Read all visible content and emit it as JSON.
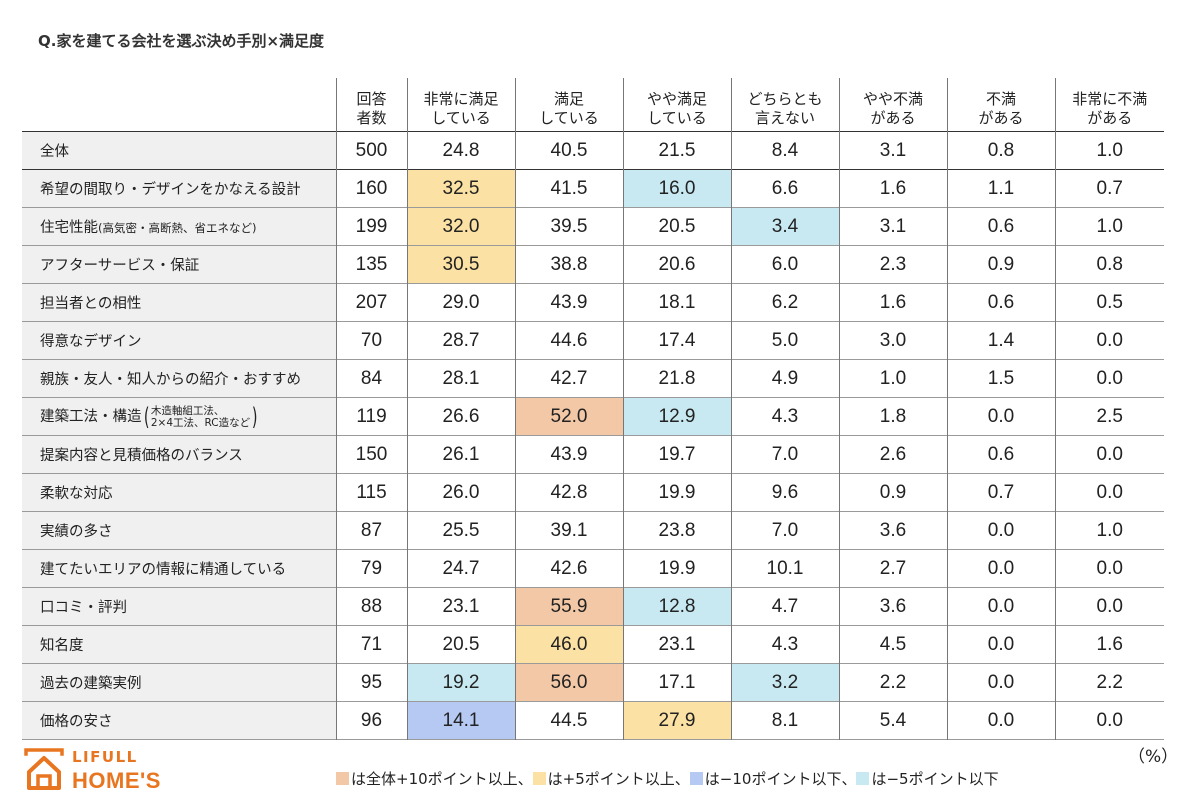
{
  "title": "Q.家を建てる会社を選ぶ決め手別×満足度",
  "colors": {
    "orange": "#f3c8a6",
    "yellow": "#fbe1a3",
    "blue": "#b5c9f3",
    "cyan": "#c9e9f2"
  },
  "chart_data": {
    "type": "table",
    "title": "Q.家を建てる会社を選ぶ決め手別×満足度",
    "unit": "（%）",
    "columns": [
      "回答\n者数",
      "非常に満足\nしている",
      "満足\nしている",
      "やや満足\nしている",
      "どちらとも\n言えない",
      "やや不満\nがある",
      "不満\nがある",
      "非常に不満\nがある"
    ],
    "rows": [
      {
        "label": "全体",
        "values": [
          "500",
          "24.8",
          "40.5",
          "21.5",
          "8.4",
          "3.1",
          "0.8",
          "1.0"
        ],
        "highlights": [
          null,
          null,
          null,
          null,
          null,
          null,
          null,
          null
        ]
      },
      {
        "label": "希望の間取り・デザインをかなえる設計",
        "values": [
          "160",
          "32.5",
          "41.5",
          "16.0",
          "6.6",
          "1.6",
          "1.1",
          "0.7"
        ],
        "highlights": [
          null,
          "yellow",
          null,
          "cyan",
          null,
          null,
          null,
          null
        ]
      },
      {
        "label": "住宅性能",
        "label_sub": "(高気密・高断熱、省エネなど)",
        "values": [
          "199",
          "32.0",
          "39.5",
          "20.5",
          "3.4",
          "3.1",
          "0.6",
          "1.0"
        ],
        "highlights": [
          null,
          "yellow",
          null,
          null,
          "cyan",
          null,
          null,
          null
        ]
      },
      {
        "label": "アフターサービス・保証",
        "values": [
          "135",
          "30.5",
          "38.8",
          "20.6",
          "6.0",
          "2.3",
          "0.9",
          "0.8"
        ],
        "highlights": [
          null,
          "yellow",
          null,
          null,
          null,
          null,
          null,
          null
        ]
      },
      {
        "label": "担当者との相性",
        "values": [
          "207",
          "29.0",
          "43.9",
          "18.1",
          "6.2",
          "1.6",
          "0.6",
          "0.5"
        ],
        "highlights": [
          null,
          null,
          null,
          null,
          null,
          null,
          null,
          null
        ]
      },
      {
        "label": "得意なデザイン",
        "values": [
          "70",
          "28.7",
          "44.6",
          "17.4",
          "5.0",
          "3.0",
          "1.4",
          "0.0"
        ],
        "highlights": [
          null,
          null,
          null,
          null,
          null,
          null,
          null,
          null
        ]
      },
      {
        "label": "親族・友人・知人からの紹介・おすすめ",
        "values": [
          "84",
          "28.1",
          "42.7",
          "21.8",
          "4.9",
          "1.0",
          "1.5",
          "0.0"
        ],
        "highlights": [
          null,
          null,
          null,
          null,
          null,
          null,
          null,
          null
        ]
      },
      {
        "label": "建築工法・構造",
        "label_sub_lines": [
          "木造軸組工法、",
          "2×4工法、RC造など"
        ],
        "values": [
          "119",
          "26.6",
          "52.0",
          "12.9",
          "4.3",
          "1.8",
          "0.0",
          "2.5"
        ],
        "highlights": [
          null,
          null,
          "orange",
          "cyan",
          null,
          null,
          null,
          null
        ]
      },
      {
        "label": "提案内容と見積価格のバランス",
        "values": [
          "150",
          "26.1",
          "43.9",
          "19.7",
          "7.0",
          "2.6",
          "0.6",
          "0.0"
        ],
        "highlights": [
          null,
          null,
          null,
          null,
          null,
          null,
          null,
          null
        ]
      },
      {
        "label": "柔軟な対応",
        "values": [
          "115",
          "26.0",
          "42.8",
          "19.9",
          "9.6",
          "0.9",
          "0.7",
          "0.0"
        ],
        "highlights": [
          null,
          null,
          null,
          null,
          null,
          null,
          null,
          null
        ]
      },
      {
        "label": "実績の多さ",
        "values": [
          "87",
          "25.5",
          "39.1",
          "23.8",
          "7.0",
          "3.6",
          "0.0",
          "1.0"
        ],
        "highlights": [
          null,
          null,
          null,
          null,
          null,
          null,
          null,
          null
        ]
      },
      {
        "label": "建てたいエリアの情報に精通している",
        "values": [
          "79",
          "24.7",
          "42.6",
          "19.9",
          "10.1",
          "2.7",
          "0.0",
          "0.0"
        ],
        "highlights": [
          null,
          null,
          null,
          null,
          null,
          null,
          null,
          null
        ]
      },
      {
        "label": "口コミ・評判",
        "values": [
          "88",
          "23.1",
          "55.9",
          "12.8",
          "4.7",
          "3.6",
          "0.0",
          "0.0"
        ],
        "highlights": [
          null,
          null,
          "orange",
          "cyan",
          null,
          null,
          null,
          null
        ]
      },
      {
        "label": "知名度",
        "values": [
          "71",
          "20.5",
          "46.0",
          "23.1",
          "4.3",
          "4.5",
          "0.0",
          "1.6"
        ],
        "highlights": [
          null,
          null,
          "yellow",
          null,
          null,
          null,
          null,
          null
        ]
      },
      {
        "label": "過去の建築実例",
        "values": [
          "95",
          "19.2",
          "56.0",
          "17.1",
          "3.2",
          "2.2",
          "0.0",
          "2.2"
        ],
        "highlights": [
          null,
          "cyan",
          "orange",
          null,
          "cyan",
          null,
          null,
          null
        ]
      },
      {
        "label": "価格の安さ",
        "values": [
          "96",
          "14.1",
          "44.5",
          "27.9",
          "8.1",
          "5.4",
          "0.0",
          "0.0"
        ],
        "highlights": [
          null,
          "blue",
          null,
          "yellow",
          null,
          null,
          null,
          null
        ]
      }
    ],
    "legend": [
      {
        "color": "orange",
        "text": "は全体+10ポイント以上、"
      },
      {
        "color": "yellow",
        "text": "は+5ポイント以上、"
      },
      {
        "color": "blue",
        "text": "は−10ポイント以下、"
      },
      {
        "color": "cyan",
        "text": "は−5ポイント以下"
      }
    ]
  },
  "logo": {
    "top": "LIFULL",
    "bottom": "HOME'S",
    "icon": "house-icon"
  }
}
